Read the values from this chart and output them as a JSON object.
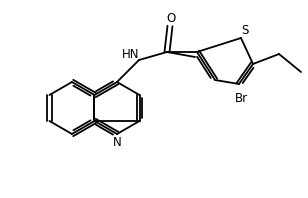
{
  "background": "#ffffff",
  "line_color": "#000000",
  "line_width": 1.3,
  "figsize": [
    3.08,
    1.98
  ],
  "dpi": 100,
  "xlim": [
    0,
    308
  ],
  "ylim": [
    0,
    198
  ]
}
